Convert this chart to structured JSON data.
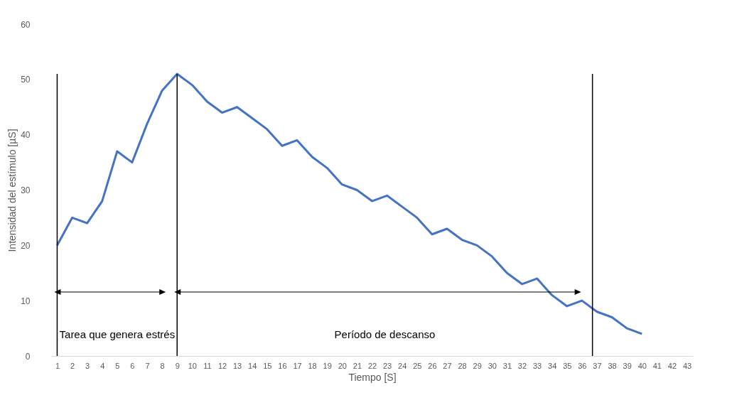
{
  "chart_data": {
    "type": "line",
    "xlabel": "Tiempo [S]",
    "ylabel": "Intensidad del estímulo [µS]",
    "x": [
      1,
      2,
      3,
      4,
      5,
      6,
      7,
      8,
      9,
      10,
      11,
      12,
      13,
      14,
      15,
      16,
      17,
      18,
      19,
      20,
      21,
      22,
      23,
      24,
      25,
      26,
      27,
      28,
      29,
      30,
      31,
      32,
      33,
      34,
      35,
      36,
      37,
      38,
      39,
      40
    ],
    "series": [
      {
        "color": "#4472c4",
        "values": [
          20,
          25,
          24,
          28,
          37,
          35,
          42,
          48,
          51,
          49,
          46,
          44,
          45,
          43,
          41,
          38,
          39,
          36,
          34,
          31,
          30,
          28,
          29,
          27,
          25,
          22,
          23,
          21,
          20,
          18,
          15,
          13,
          14,
          11,
          9,
          10,
          8,
          7,
          5,
          4
        ]
      }
    ],
    "xlim": [
      0.6,
      43.4
    ],
    "xticks": [
      1,
      2,
      3,
      4,
      5,
      6,
      7,
      8,
      9,
      10,
      11,
      12,
      13,
      14,
      15,
      16,
      17,
      18,
      19,
      20,
      21,
      22,
      23,
      24,
      25,
      26,
      27,
      28,
      29,
      30,
      31,
      32,
      33,
      34,
      35,
      36,
      37,
      38,
      39,
      40,
      41,
      42,
      43
    ],
    "ylim": [
      0,
      60
    ],
    "yticks": [
      0,
      10,
      20,
      30,
      40,
      50,
      60
    ],
    "grid": false,
    "marker": "none",
    "line_style": "solid",
    "ref_lines": [
      {
        "axis": "x",
        "value": 1,
        "color": "#000000"
      },
      {
        "axis": "x",
        "value": 9,
        "color": "#000000"
      },
      {
        "axis": "x",
        "value": 36.7,
        "color": "#000000"
      }
    ],
    "annotations": [
      "Tarea que genera estrés",
      "Período de descanso"
    ]
  }
}
